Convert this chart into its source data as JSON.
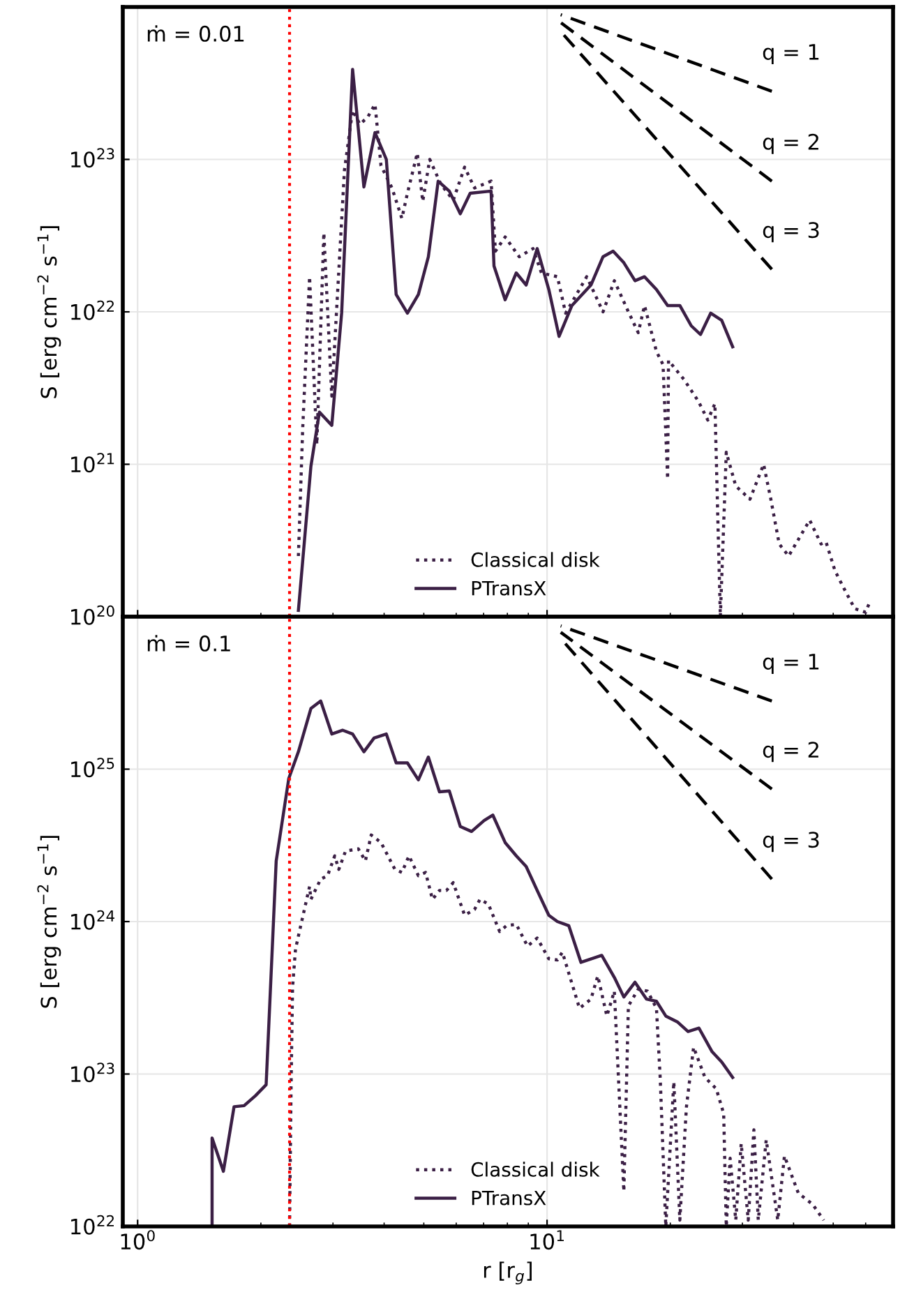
{
  "chart_data": [
    {
      "type": "line",
      "ylabel": "S [erg cm$^{−2}$ s$^{−1}$]",
      "annotations": [
        "ṁ = 0.01"
      ],
      "log": "xy",
      "xlim": [
        0.92,
        70
      ],
      "ylim": [
        1e+20,
        1e+24
      ],
      "yticks": [
        {
          "value": 1e+20,
          "label": "10$^{20}$"
        },
        {
          "value": 1e+21,
          "label": "10$^{21}$"
        },
        {
          "value": 1e+22,
          "label": "10$^{22}$"
        },
        {
          "value": 1e+23,
          "label": "10$^{23}$"
        }
      ],
      "tick_labels": "y",
      "grid": true,
      "legend": "bottom",
      "ref_lines": [
        {
          "axis": "x",
          "value": 2.35,
          "color": "#ff0000",
          "line_style": "dotted"
        }
      ],
      "series": [
        {
          "name": "Classical disk",
          "color": "#3b1f45",
          "line_style": "dotted",
          "x": [
            2.47,
            2.53,
            2.63,
            2.74,
            2.85,
            2.98,
            3.2,
            3.35,
            3.49,
            3.65,
            3.8,
            3.93,
            4.18,
            4.42,
            4.56,
            4.82,
            4.97,
            5.17,
            5.5,
            5.9,
            6.29,
            6.65,
            7.3,
            7.48,
            7.9,
            8.55,
            9.24,
            9.69,
            10.6,
            11.1,
            12.5,
            13.7,
            14.6,
            15.8,
            16.7,
            17.3,
            18.5,
            19.2,
            19.7,
            19.8,
            21.6,
            23.4,
            24.7,
            25.7,
            26.5,
            27.4,
            28.9,
            31.3,
            33.8,
            35.2,
            36.9,
            38.9,
            43.8,
            46.7,
            48,
            50.5,
            53,
            56.4,
            60,
            61.4
          ],
          "values": [
            2.5e+20,
            1.7e+21,
            1.7e+22,
            1.35e+21,
            3.3e+22,
            2.8e+21,
            8.5e+22,
            2.1e+23,
            1.7e+23,
            1.9e+23,
            2.3e+23,
            9.1e+22,
            6.5e+22,
            4.1e+22,
            6e+22,
            1.1e+23,
            5.3e+22,
            1e+23,
            6.9e+22,
            5.4e+22,
            8.9e+22,
            6.5e+22,
            7.2e+22,
            2.5e+22,
            3.1e+22,
            2.3e+22,
            2.6e+22,
            1.8e+22,
            1.7e+22,
            9.8e+21,
            1.7e+22,
            1e+22,
            1.6e+22,
            1e+22,
            7.3e+21,
            1.1e+22,
            5.5e+21,
            4.5e+21,
            8e+20,
            4.8e+21,
            3.6e+21,
            2.6e+21,
            1.95e+21,
            2.5e+21,
            1e+20,
            1.2e+21,
            7.2e+20,
            5.9e+20,
            1e+21,
            5.9e+20,
            3e+20,
            2.5e+20,
            4.3e+20,
            3e+20,
            3.1e+20,
            2e+20,
            1.55e+20,
            1.13e+20,
            1.07e+20,
            1.25e+20
          ]
        },
        {
          "name": "PTransX",
          "color": "#3b1f45",
          "line_style": "solid",
          "x": [
            2.47,
            2.65,
            2.78,
            2.98,
            3.15,
            3.35,
            3.57,
            3.8,
            4.05,
            4.28,
            4.56,
            4.85,
            5.13,
            5.42,
            5.77,
            6.14,
            6.49,
            7.3,
            7.42,
            7.9,
            8.41,
            8.89,
            9.46,
            10.1,
            10.7,
            11.5,
            12.8,
            13.7,
            14.5,
            15.4,
            16.4,
            17.3,
            18.5,
            19.7,
            21.1,
            22.5,
            23.7,
            25.1,
            26.7,
            28.4
          ],
          "values": [
            1.1e+20,
            9.7e+20,
            2.2e+21,
            1.8e+21,
            9.8e+21,
            3.9e+23,
            6.6e+22,
            1.5e+23,
            1e+23,
            1.3e+22,
            9.8e+21,
            1.3e+22,
            2.3e+22,
            7.2e+22,
            6.2e+22,
            4.4e+22,
            6e+22,
            6.2e+22,
            2e+22,
            1.2e+22,
            1.8e+22,
            1.5e+22,
            2.6e+22,
            1.4e+22,
            6.9e+21,
            1.1e+22,
            1.5e+22,
            2.3e+22,
            2.5e+22,
            2.1e+22,
            1.6e+22,
            1.7e+22,
            1.4e+22,
            1.1e+22,
            1.1e+22,
            8.1e+21,
            7.1e+21,
            9.8e+21,
            8.8e+21,
            5.9e+21
          ]
        },
        {
          "name": "q = 1",
          "color": "#000000",
          "line_style": "dashed",
          "x": [
            10.8,
            35.4
          ],
          "values": [
            8.9e+23,
            2.8e+23
          ]
        },
        {
          "name": "q = 2",
          "color": "#000000",
          "line_style": "dashed",
          "x": [
            10.8,
            35.4
          ],
          "values": [
            7.9e+23,
            7.2e+22
          ]
        },
        {
          "name": "q = 3",
          "color": "#000000",
          "line_style": "dashed",
          "x": [
            10.8,
            35.4
          ],
          "values": [
            6.9e+23,
            1.9e+22
          ]
        }
      ]
    },
    {
      "type": "line",
      "xlabel": "r [r$_{g}$]",
      "ylabel": "S [erg cm$^{−2}$ s$^{−1}$]",
      "annotations": [
        "ṁ = 0.1"
      ],
      "log": "xy",
      "xlim": [
        0.92,
        70
      ],
      "ylim": [
        1e+22,
        1e+26
      ],
      "xticks": [
        {
          "value": 1,
          "label": "10$^{0}$"
        },
        {
          "value": 10,
          "label": "10$^{1}$"
        }
      ],
      "yticks": [
        {
          "value": 1e+22,
          "label": "10$^{22}$"
        },
        {
          "value": 1e+23,
          "label": "10$^{23}$"
        },
        {
          "value": 1e+24,
          "label": "10$^{24}$"
        },
        {
          "value": 1e+25,
          "label": "10$^{25}$"
        }
      ],
      "grid": true,
      "legend": "bottom",
      "ref_lines": [
        {
          "axis": "x",
          "value": 2.35,
          "color": "#ff0000",
          "line_style": "dotted"
        }
      ],
      "series": [
        {
          "name": "Classical disk",
          "color": "#3b1f45",
          "line_style": "dotted",
          "x": [
            2.35,
            2.37,
            2.39,
            2.43,
            2.53,
            2.63,
            2.65,
            2.8,
            2.91,
            3.03,
            3.1,
            3.22,
            3.46,
            3.6,
            3.72,
            3.93,
            4.25,
            4.42,
            4.6,
            4.85,
            5.05,
            5.25,
            5.46,
            5.68,
            5.9,
            6.29,
            6.65,
            6.86,
            7.19,
            7.66,
            7.96,
            8.41,
            8.96,
            9.46,
            10.1,
            10.6,
            10.9,
            12.0,
            12.8,
            13.3,
            14.0,
            14.6,
            15.4,
            15.8,
            16.7,
            17.6,
            18.5,
            18.9,
            19.5,
            20.4,
            21.1,
            21.9,
            22.8,
            24.3,
            25.9,
            27.0,
            27.4,
            28.0,
            28.9,
            29.8,
            31.0,
            32.0,
            32.8,
            34.3,
            36.6,
            38.0,
            41.1,
            44.5,
            47.4
          ],
          "values": [
            1e+22,
            8e+22,
            3.7e+23,
            6.6e+23,
            1.07e+24,
            1.7e+24,
            1.4e+24,
            1.9e+24,
            2e+24,
            2.7e+24,
            2.2e+24,
            2.9e+24,
            3e+24,
            2.5e+24,
            3.7e+24,
            3.3e+24,
            2.2e+24,
            2.1e+24,
            2.7e+24,
            2e+24,
            2.1e+24,
            1.4e+24,
            1.6e+24,
            1.6e+24,
            1.8e+24,
            1.1e+24,
            1.2e+24,
            1.4e+24,
            1.3e+24,
            8.6e+23,
            9.4e+23,
            9.6e+23,
            6.9e+23,
            7.8e+23,
            5.7e+23,
            5.6e+23,
            6.3e+23,
            2.7e+23,
            3.1e+23,
            4.4e+23,
            2.4e+23,
            3.5e+23,
            1.7e+22,
            2.8e+23,
            3.6e+23,
            3.5e+23,
            2.7e+23,
            9.3e+22,
            1e+22,
            8.9e+22,
            1.1e+22,
            6.1e+22,
            1.5e+23,
            9.5e+22,
            8e+22,
            5.5e+22,
            1e+22,
            2.8e+22,
            1.1e+22,
            3.5e+22,
            1.1e+22,
            4.3e+22,
            1.1e+22,
            3.7e+22,
            1.1e+22,
            2.9e+22,
            1.65e+22,
            1.4e+22,
            1.1e+22
          ]
        },
        {
          "name": "PTransX",
          "color": "#3b1f45",
          "line_style": "solid",
          "x": [
            1.52,
            1.52,
            1.62,
            1.72,
            1.82,
            1.94,
            2.06,
            2.18,
            2.34,
            2.47,
            2.65,
            2.8,
            2.98,
            3.17,
            3.35,
            3.57,
            3.78,
            4.05,
            4.28,
            4.56,
            4.85,
            5.13,
            5.46,
            5.77,
            6.14,
            6.54,
            7.02,
            7.37,
            7.9,
            8.41,
            8.89,
            9.46,
            10.1,
            10.6,
            11.3,
            12.1,
            13.6,
            14.6,
            15.4,
            16.4,
            17.5,
            18.5,
            19.5,
            20.8,
            22.1,
            23.5,
            25.3,
            26.7,
            28.4
          ],
          "values": [
            1e+22,
            3.8e+22,
            2.3e+22,
            6.1e+22,
            6.2e+22,
            7.2e+22,
            8.5e+22,
            2.5e+24,
            8.7e+24,
            1.3e+25,
            2.5e+25,
            2.8e+25,
            1.7e+25,
            1.8e+25,
            1.7e+25,
            1.3e+25,
            1.6e+25,
            1.7e+25,
            1.1e+25,
            1.1e+25,
            8.5e+24,
            1.2e+25,
            7.1e+24,
            7.2e+24,
            4.2e+24,
            3.9e+24,
            4.6e+24,
            5e+24,
            3.3e+24,
            2.7e+24,
            2.3e+24,
            1.6e+24,
            1.1e+24,
            1e+24,
            9.4e+23,
            5.4e+23,
            6e+23,
            4.3e+23,
            3.2e+23,
            4e+23,
            3.1e+23,
            3e+23,
            2.4e+23,
            2.2e+23,
            1.9e+23,
            2e+23,
            1.4e+23,
            1.2e+23,
            9.5e+22
          ]
        },
        {
          "name": "q = 1",
          "color": "#000000",
          "line_style": "dashed",
          "x": [
            10.8,
            35.4
          ],
          "values": [
            8.7e+25,
            2.8e+25
          ]
        },
        {
          "name": "q = 2",
          "color": "#000000",
          "line_style": "dashed",
          "x": [
            10.8,
            35.4
          ],
          "values": [
            7.9e+25,
            7.4e+24
          ]
        },
        {
          "name": "q = 3",
          "color": "#000000",
          "line_style": "dashed",
          "x": [
            10.8,
            35.4
          ],
          "values": [
            7.2e+25,
            1.9e+24
          ]
        }
      ]
    }
  ]
}
